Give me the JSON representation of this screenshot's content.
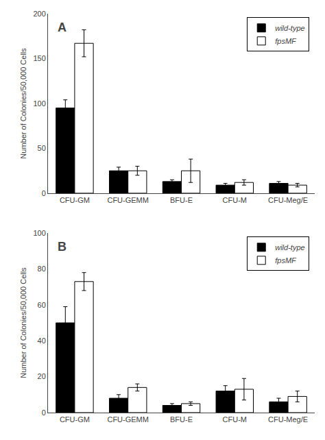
{
  "chart_data": [
    {
      "type": "bar",
      "categories": [
        "CFU-GM",
        "CFU-GEMM",
        "BFU-E",
        "CFU-M",
        "CFU-Meg/E"
      ],
      "series": [
        {
          "name": "wild-type",
          "color": "#000000",
          "values": [
            95,
            25,
            13,
            9,
            11
          ],
          "errors": [
            9,
            4,
            2,
            2,
            2
          ]
        },
        {
          "name": "fpsMF",
          "color": "#ffffff",
          "values": [
            167,
            25,
            25,
            12,
            9
          ],
          "errors": [
            15,
            5,
            13,
            3,
            2
          ]
        }
      ],
      "ylabel": "Number of Colonies/50,000 Cells",
      "ylim": [
        0,
        200
      ],
      "yticks": [
        0,
        50,
        100,
        150,
        200
      ],
      "annotations": [
        "A"
      ],
      "legend": "upper right",
      "grid": false
    },
    {
      "type": "bar",
      "categories": [
        "CFU-GM",
        "CFU-GEMM",
        "BFU-E",
        "CFU-M",
        "CFU-Meg/E"
      ],
      "series": [
        {
          "name": "wild-type",
          "color": "#000000",
          "values": [
            50,
            8,
            4,
            12,
            6
          ],
          "errors": [
            9,
            2,
            1,
            3,
            2
          ]
        },
        {
          "name": "fpsMF",
          "color": "#ffffff",
          "values": [
            73,
            14,
            5,
            13,
            9
          ],
          "errors": [
            5,
            2,
            1,
            6,
            3
          ]
        }
      ],
      "ylabel": "Number of Colonies/50,000 Cells",
      "ylim": [
        0,
        100
      ],
      "yticks": [
        0,
        20,
        40,
        60,
        80,
        100
      ],
      "annotations": [
        "B"
      ],
      "legend": "upper right",
      "grid": false
    }
  ]
}
